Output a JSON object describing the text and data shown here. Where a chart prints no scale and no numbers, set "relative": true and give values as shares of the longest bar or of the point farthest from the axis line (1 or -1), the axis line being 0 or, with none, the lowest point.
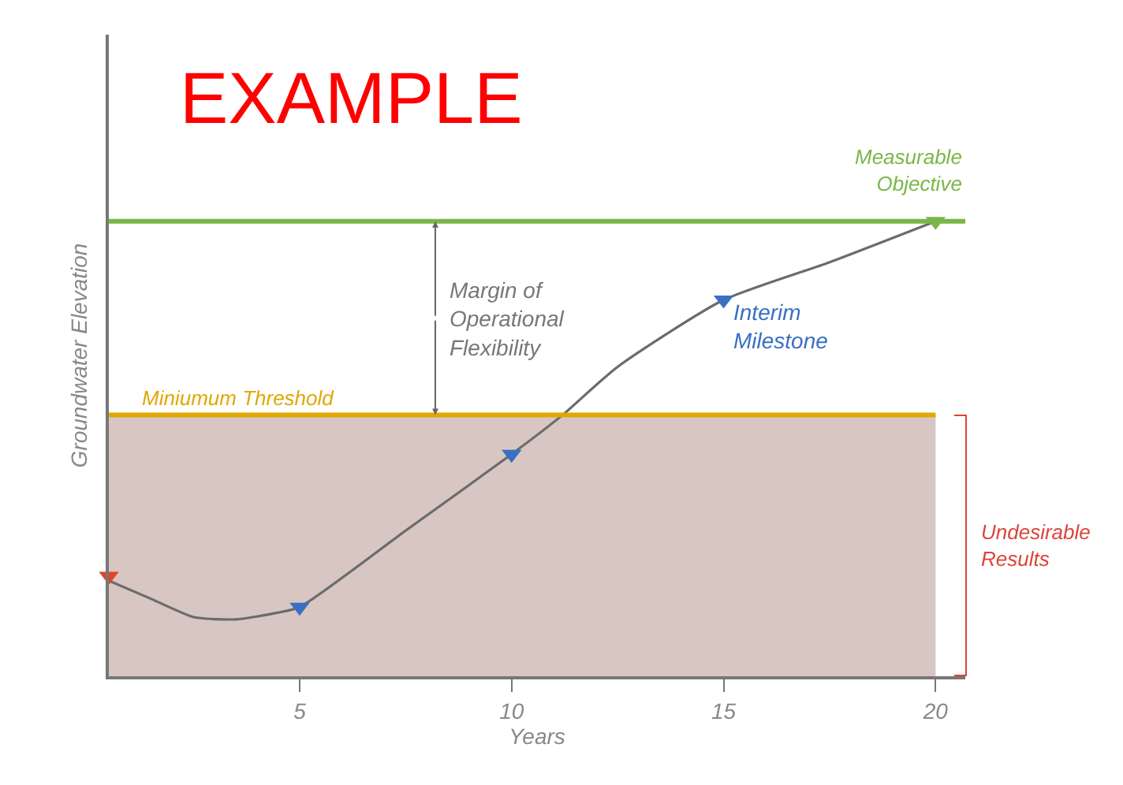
{
  "chart_data": {
    "type": "line",
    "relative": true,
    "xlabel": "Years",
    "ylabel": "Groundwater Elevation",
    "xlim": [
      0.5,
      20.7
    ],
    "xticks": [
      5,
      10,
      15,
      20
    ],
    "series": [
      {
        "color": "#6b6b6b",
        "marker": "none",
        "x": [
          0.5,
          1.5,
          2.5,
          3.5,
          4.5,
          5,
          7.5,
          10,
          11.2,
          12.5,
          15,
          17.5,
          20
        ],
        "values": [
          0.21,
          0.17,
          0.13,
          0.125,
          0.14,
          0.152,
          0.32,
          0.488,
          0.574,
          0.68,
          0.827,
          0.91,
          1.0
        ]
      },
      {
        "type": "scatter",
        "marker": "triangle",
        "x": [
          0.5,
          5,
          10,
          15,
          20
        ],
        "values": [
          0.22,
          0.152,
          0.488,
          0.827,
          1.0
        ],
        "colors": [
          "#e0452a",
          "#3a6fc4",
          "#3a6fc4",
          "#3a6fc4",
          "#7ab648"
        ]
      }
    ],
    "ref_lines": [
      {
        "axis": "y",
        "value": 1.0,
        "label": "Measurable Objective",
        "color": "#7ab648"
      },
      {
        "axis": "y",
        "value": 0.574,
        "label": "Miniumum Threshold",
        "color": "#e0a800"
      }
    ],
    "bands": [
      {
        "axis": "y",
        "from": 0,
        "to": 0.574,
        "label": "Undesirable Results",
        "color": "#c9b3ad"
      }
    ],
    "annotations": [
      "EXAMPLE",
      "Margin of Operational Flexibility",
      {
        "text": "Interim Milestone",
        "x": 15,
        "y": 0.827
      }
    ],
    "grid": false
  }
}
